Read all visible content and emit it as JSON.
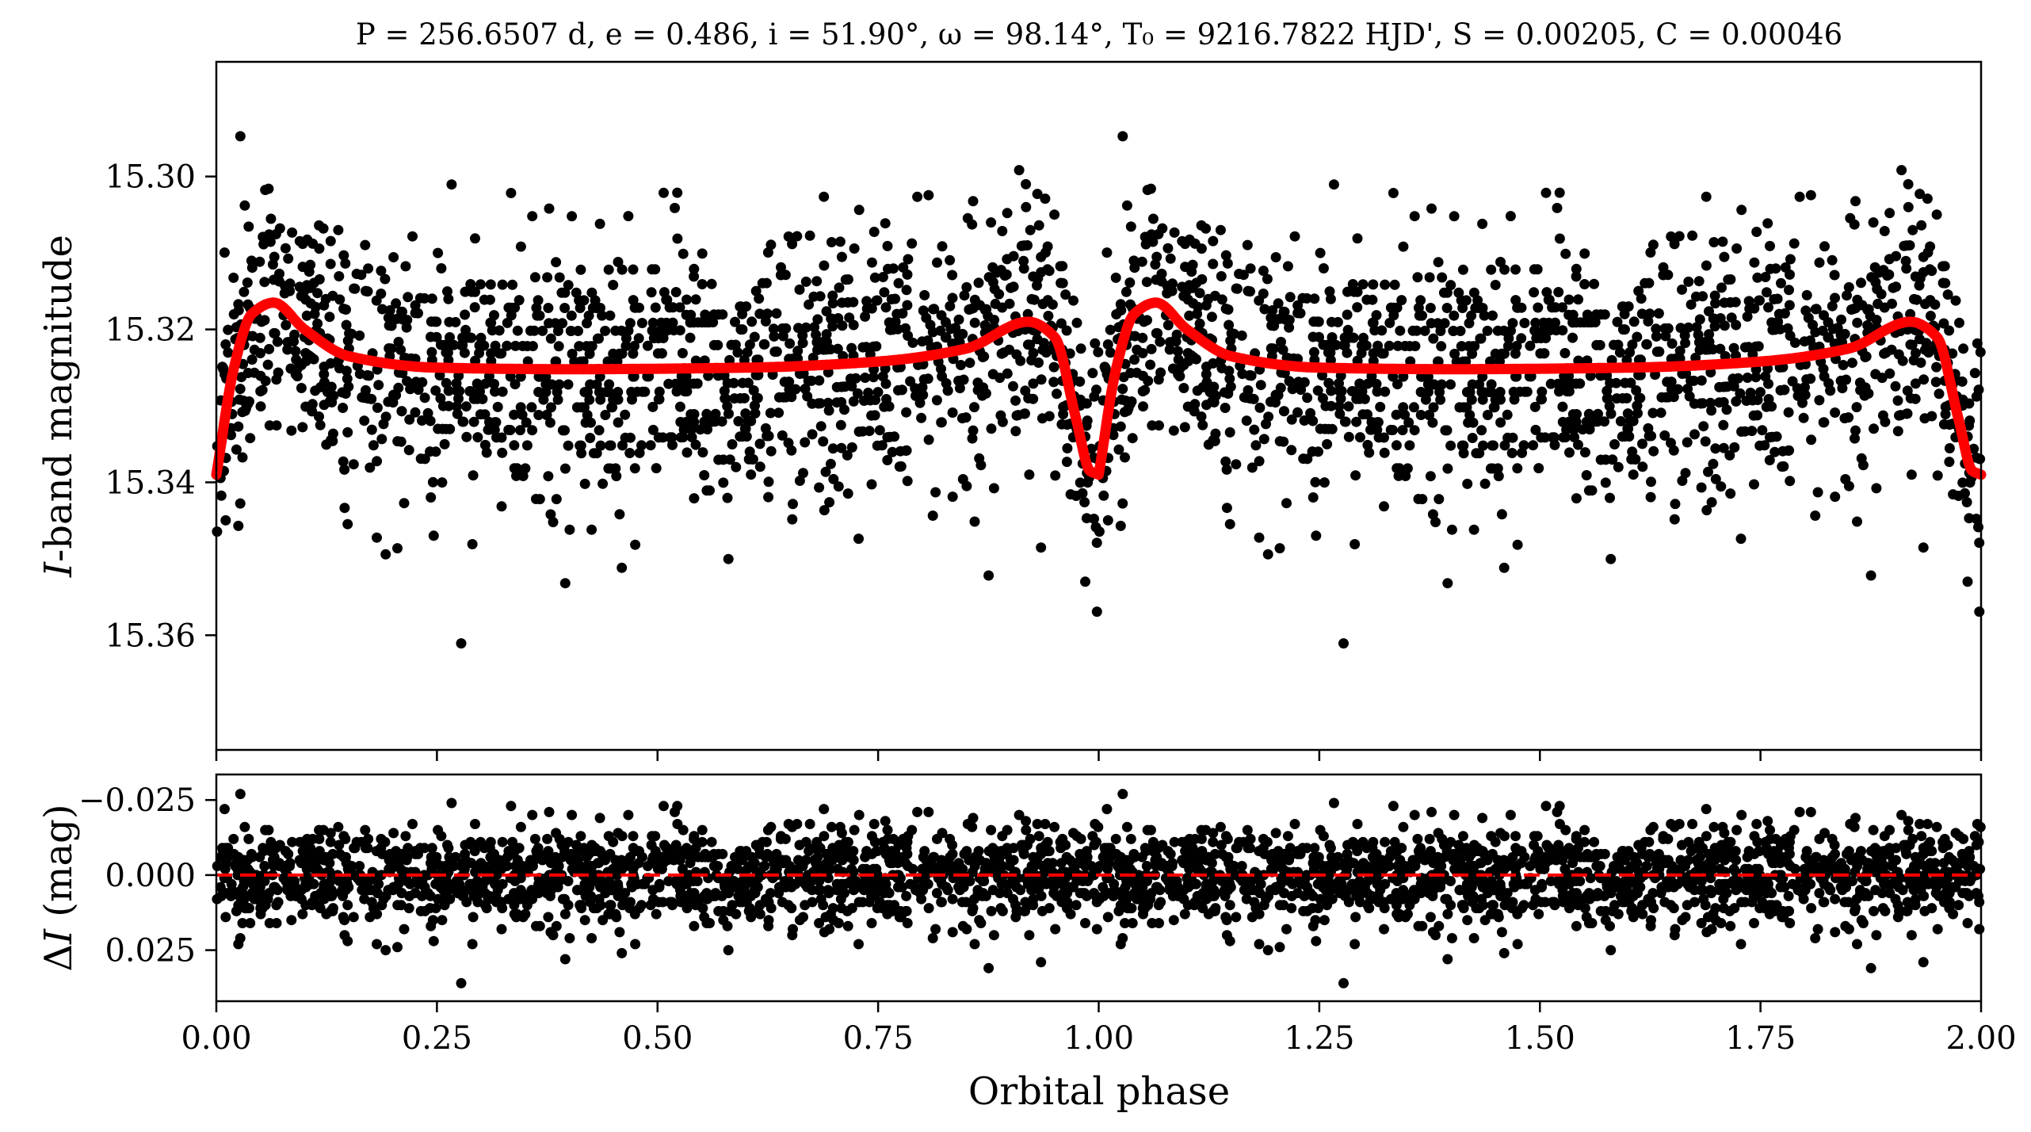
{
  "figure": {
    "title": "P = 256.6507 d, e = 0.486, i = 51.90°, ω = 98.14°, T₀ = 9216.7822 HJD', S = 0.00205, C = 0.00046"
  },
  "chart_data": [
    {
      "type": "scatter",
      "panel": "top",
      "title": "P = 256.6507 d, e = 0.486, i = 51.90°, ω = 98.14°, T₀ = 9216.7822 HJD', S = 0.00205, C = 0.00046",
      "xlabel": "",
      "ylabel": "I-band magnitude",
      "xlim": [
        0.0,
        2.0
      ],
      "ylim": [
        15.375,
        15.285
      ],
      "y_inverted": true,
      "yticks": [
        "15.30",
        "15.32",
        "15.34",
        "15.36"
      ],
      "ytick_values": [
        15.3,
        15.32,
        15.34,
        15.36
      ],
      "grid": false,
      "series": [
        {
          "kind": "points",
          "color": "#000000",
          "n_points_per_cycle": 1400,
          "phase_range": [
            0.0,
            1.0
          ],
          "repeated_over": [
            0.0,
            2.0
          ],
          "baseline_mag": 15.325,
          "scatter_sd_mag": 0.008
        },
        {
          "kind": "model-curve",
          "color": "#ff0000",
          "model_values": {
            "phase": [
              0.0,
              0.02,
              0.04,
              0.065,
              0.1,
              0.15,
              0.25,
              0.4,
              0.6,
              0.75,
              0.85,
              0.92,
              0.95,
              0.975,
              0.99,
              1.0
            ],
            "mag": [
              15.339,
              15.325,
              15.318,
              15.3165,
              15.32,
              15.3235,
              15.325,
              15.3252,
              15.325,
              15.3242,
              15.3225,
              15.319,
              15.321,
              15.332,
              15.3385,
              15.339
            ]
          }
        }
      ]
    },
    {
      "type": "scatter",
      "panel": "bottom",
      "xlabel": "Orbital phase",
      "ylabel": "ΔI (mag)",
      "xlim": [
        0.0,
        2.0
      ],
      "ylim": [
        0.042,
        -0.0335
      ],
      "y_inverted": true,
      "xticks": [
        "0.00",
        "0.25",
        "0.50",
        "0.75",
        "1.00",
        "1.25",
        "1.50",
        "1.75",
        "2.00"
      ],
      "xtick_values": [
        0.0,
        0.25,
        0.5,
        0.75,
        1.0,
        1.25,
        1.5,
        1.75,
        2.0
      ],
      "yticks": [
        "−0.025",
        "0.000",
        "0.025"
      ],
      "ytick_values": [
        -0.025,
        0.0,
        0.025
      ],
      "grid": false,
      "series": [
        {
          "kind": "residual-points",
          "color": "#000000",
          "scatter_sd_mag": 0.008
        },
        {
          "kind": "zero-line",
          "style": "dashed",
          "color": "#ff0000",
          "y": 0.0
        }
      ]
    }
  ]
}
